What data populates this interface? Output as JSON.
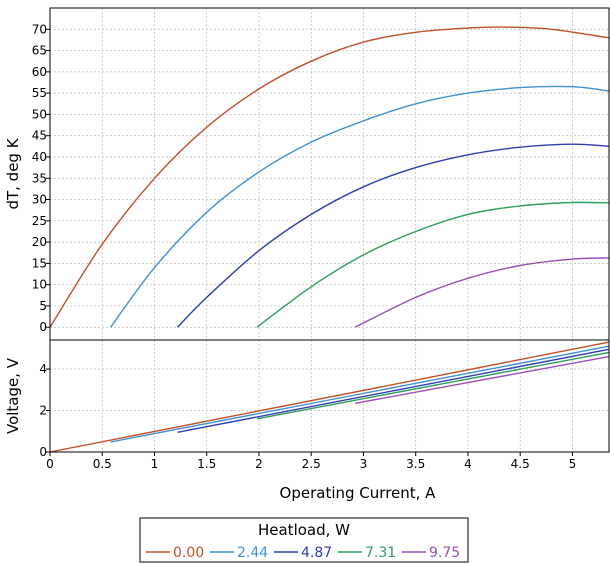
{
  "chart_data": [
    {
      "type": "line",
      "title": "",
      "xlabel": "",
      "ylabel": "dT, deg K",
      "xlim": [
        0,
        5.35
      ],
      "ylim": [
        -3,
        75
      ],
      "yticks": [
        0,
        5,
        10,
        15,
        20,
        25,
        30,
        35,
        40,
        45,
        50,
        55,
        60,
        65,
        70
      ],
      "grid": true,
      "series": [
        {
          "name": "0.00",
          "color": "#c0502a",
          "x": [
            0,
            0.5,
            1.0,
            1.5,
            2.0,
            2.5,
            3.0,
            3.5,
            4.0,
            4.4,
            4.8,
            5.35
          ],
          "y": [
            0,
            19.5,
            35,
            47,
            56,
            62.5,
            67,
            69.3,
            70.3,
            70.5,
            70,
            68
          ]
        },
        {
          "name": "2.44",
          "color": "#3f93d2",
          "x": [
            0.58,
            1.0,
            1.5,
            2.0,
            2.5,
            3.0,
            3.5,
            4.0,
            4.5,
            5.0,
            5.35
          ],
          "y": [
            0,
            14,
            27,
            36.5,
            43.5,
            48.5,
            52.5,
            55,
            56.3,
            56.5,
            55.5
          ]
        },
        {
          "name": "4.87",
          "color": "#2e3fb0",
          "x": [
            1.22,
            1.5,
            2.0,
            2.5,
            3.0,
            3.5,
            4.0,
            4.5,
            5.0,
            5.35
          ],
          "y": [
            0,
            7,
            18,
            26.5,
            33,
            37.5,
            40.5,
            42.3,
            43,
            42.5
          ]
        },
        {
          "name": "7.31",
          "color": "#2e9e5a",
          "x": [
            1.98,
            2.5,
            3.0,
            3.5,
            4.0,
            4.5,
            5.0,
            5.35
          ],
          "y": [
            0,
            9.5,
            17,
            22.5,
            26.5,
            28.5,
            29.3,
            29.2
          ]
        },
        {
          "name": "9.75",
          "color": "#9b4fb7",
          "x": [
            2.92,
            3.5,
            4.0,
            4.5,
            5.0,
            5.35
          ],
          "y": [
            0,
            7,
            11.5,
            14.5,
            16,
            16.3
          ]
        }
      ]
    },
    {
      "type": "line",
      "title": "",
      "xlabel": "Operating Current, A",
      "ylabel": "Voltage, V",
      "xlim": [
        0,
        5.35
      ],
      "ylim": [
        0,
        5.4
      ],
      "yticks": [
        0,
        2,
        4
      ],
      "xticks": [
        0,
        0.5,
        1,
        1.5,
        2,
        2.5,
        3,
        3.5,
        4,
        4.5,
        5
      ],
      "grid": true,
      "series": [
        {
          "name": "0.00",
          "color": "#c0502a",
          "x": [
            0,
            5.35
          ],
          "y": [
            0,
            5.3
          ]
        },
        {
          "name": "2.44",
          "color": "#3f93d2",
          "x": [
            0.58,
            5.35
          ],
          "y": [
            0.48,
            5.1
          ]
        },
        {
          "name": "4.87",
          "color": "#2e3fb0",
          "x": [
            1.22,
            5.35
          ],
          "y": [
            0.95,
            4.95
          ]
        },
        {
          "name": "7.31",
          "color": "#2e9e5a",
          "x": [
            1.98,
            5.35
          ],
          "y": [
            1.6,
            4.8
          ]
        },
        {
          "name": "9.75",
          "color": "#9b4fb7",
          "x": [
            2.92,
            5.35
          ],
          "y": [
            2.35,
            4.6
          ]
        }
      ]
    }
  ],
  "legend": {
    "title": "Heatload, W",
    "placement": "bottom-center",
    "entries": [
      "0.00",
      "2.44",
      "4.87",
      "7.31",
      "9.75"
    ]
  }
}
